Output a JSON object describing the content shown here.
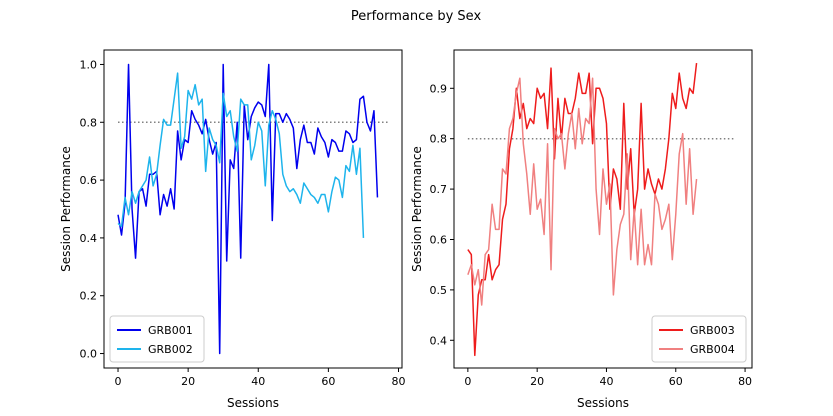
{
  "figure": {
    "suptitle": "Performance by Sex"
  },
  "chart_data": [
    {
      "type": "line",
      "title": "",
      "xlabel": "Sessions",
      "ylabel": "Session Performance",
      "xlim": [
        -4,
        81
      ],
      "ylim": [
        -0.05,
        1.05
      ],
      "xticks": [
        0,
        20,
        40,
        60,
        80
      ],
      "yticks": [
        0.0,
        0.2,
        0.4,
        0.6,
        0.8,
        1.0
      ],
      "ytick_labels": [
        "0.0",
        "0.2",
        "0.4",
        "0.6",
        "0.8",
        "1.0"
      ],
      "reference_line": {
        "y": 0.8,
        "x_range": [
          0,
          77
        ],
        "style": "dotted",
        "color": "#808080"
      },
      "legend_position": "lower-left",
      "series": [
        {
          "name": "GRB001",
          "color": "#0000ee",
          "y": [
            0.48,
            0.41,
            0.52,
            1.0,
            0.5,
            0.33,
            0.56,
            0.57,
            0.51,
            0.62,
            0.62,
            0.63,
            0.48,
            0.55,
            0.51,
            0.57,
            0.5,
            0.77,
            0.67,
            0.74,
            0.73,
            0.84,
            0.81,
            0.79,
            0.76,
            0.81,
            0.74,
            0.69,
            0.73,
            0.0,
            1.0,
            0.32,
            0.67,
            0.64,
            0.8,
            0.33,
            0.86,
            0.74,
            0.82,
            0.85,
            0.87,
            0.86,
            0.82,
            1.0,
            0.46,
            0.83,
            0.83,
            0.8,
            0.83,
            0.81,
            0.78,
            0.64,
            0.74,
            0.79,
            0.73,
            0.73,
            0.69,
            0.78,
            0.75,
            0.73,
            0.68,
            0.74,
            0.73,
            0.7,
            0.7,
            0.77,
            0.76,
            0.73,
            0.74,
            0.88,
            0.89,
            0.8,
            0.77,
            0.84,
            0.54
          ]
        },
        {
          "name": "GRB002",
          "color": "#1eb4ec",
          "y": [
            0.45,
            0.44,
            0.54,
            0.48,
            0.56,
            0.52,
            0.56,
            0.58,
            0.6,
            0.68,
            0.58,
            0.62,
            0.72,
            0.81,
            0.79,
            0.79,
            0.88,
            0.97,
            0.71,
            0.75,
            0.91,
            0.88,
            0.93,
            0.86,
            0.88,
            0.63,
            0.78,
            0.74,
            0.72,
            0.66,
            0.9,
            0.82,
            0.84,
            0.75,
            0.7,
            0.88,
            0.86,
            0.86,
            0.67,
            0.72,
            0.8,
            0.77,
            0.58,
            0.79,
            0.84,
            0.81,
            0.76,
            0.62,
            0.58,
            0.56,
            0.57,
            0.55,
            0.52,
            0.59,
            0.57,
            0.55,
            0.54,
            0.52,
            0.55,
            0.55,
            0.49,
            0.56,
            0.61,
            0.6,
            0.54,
            0.65,
            0.63,
            0.72,
            0.62,
            0.71,
            0.4
          ]
        }
      ]
    },
    {
      "type": "line",
      "title": "",
      "xlabel": "Sessions",
      "ylabel": "Session Performance",
      "xlim": [
        -4,
        82
      ],
      "ylim": [
        0.345,
        0.976
      ],
      "xticks": [
        0,
        20,
        40,
        60,
        80
      ],
      "yticks": [
        0.4,
        0.5,
        0.6,
        0.7,
        0.8,
        0.9
      ],
      "ytick_labels": [
        "0.4",
        "0.5",
        "0.6",
        "0.7",
        "0.8",
        "0.9"
      ],
      "reference_line": {
        "y": 0.8,
        "x_range": [
          0,
          77
        ],
        "style": "dotted",
        "color": "#808080"
      },
      "legend_position": "lower-right",
      "series": [
        {
          "name": "GRB003",
          "color": "#ee1c1c",
          "y": [
            0.58,
            0.57,
            0.37,
            0.49,
            0.52,
            0.52,
            0.57,
            0.52,
            0.54,
            0.55,
            0.64,
            0.67,
            0.78,
            0.82,
            0.9,
            0.84,
            0.87,
            0.82,
            0.84,
            0.83,
            0.9,
            0.88,
            0.89,
            0.82,
            0.94,
            0.76,
            0.88,
            0.8,
            0.88,
            0.85,
            0.85,
            0.88,
            0.93,
            0.89,
            0.89,
            0.93,
            0.79,
            0.9,
            0.9,
            0.88,
            0.83,
            0.66,
            0.74,
            0.72,
            0.66,
            0.87,
            0.7,
            0.78,
            0.65,
            0.7,
            0.87,
            0.7,
            0.74,
            0.71,
            0.69,
            0.72,
            0.7,
            0.74,
            0.8,
            0.89,
            0.86,
            0.93,
            0.88,
            0.86,
            0.9,
            0.89,
            0.95
          ]
        },
        {
          "name": "GRB004",
          "color": "#f08080",
          "y": [
            0.53,
            0.55,
            0.51,
            0.54,
            0.47,
            0.57,
            0.58,
            0.67,
            0.62,
            0.62,
            0.74,
            0.73,
            0.82,
            0.84,
            0.89,
            0.92,
            0.79,
            0.73,
            0.65,
            0.75,
            0.66,
            0.68,
            0.61,
            0.79,
            0.54,
            0.82,
            0.8,
            0.81,
            0.74,
            0.81,
            0.85,
            0.78,
            0.86,
            0.79,
            0.84,
            0.83,
            0.92,
            0.7,
            0.61,
            0.74,
            0.67,
            0.71,
            0.49,
            0.58,
            0.63,
            0.65,
            0.77,
            0.56,
            0.66,
            0.55,
            0.66,
            0.55,
            0.59,
            0.55,
            0.69,
            0.67,
            0.62,
            0.64,
            0.67,
            0.56,
            0.65,
            0.77,
            0.81,
            0.67,
            0.78,
            0.65,
            0.72
          ]
        }
      ]
    }
  ]
}
